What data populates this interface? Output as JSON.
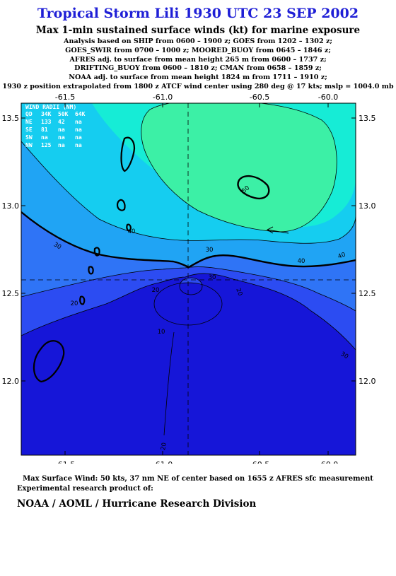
{
  "title": "Tropical Storm Lili 1930 UTC 23 SEP 2002",
  "subtitle": "Max 1-min sustained surface winds (kt) for marine exposure",
  "info_lines": [
    "Analysis based on  SHIP from 0600 – 1900 z;  GOES from 1202 – 1302 z;",
    "GOES_SWIR from 0700 – 1000 z;  MOORED_BUOY from 0645 – 1846 z;",
    "AFRES adj. to surface from mean height 265 m from 0600 – 1737 z;",
    "DRIFTING_BUOY from 0600 – 1810 z;  CMAN from 0658 – 1859 z;",
    "NOAA adj. to surface from mean height 1824 m from 1711 – 1910 z;",
    "1930 z position extrapolated from 1800 z ATCF wind center using 280 deg @ 17 kts; mslp = 1004.0 mb"
  ],
  "map": {
    "lon_ticks": [
      "-61.5",
      "-61.0",
      "-60.5",
      "-60.0"
    ],
    "lat_ticks": [
      "13.5",
      "13.0",
      "12.5",
      "12.0"
    ],
    "contour_labels": [
      "50",
      "40",
      "40",
      "40",
      "30",
      "30",
      "30",
      "30",
      "20",
      "20",
      "20",
      "10",
      "20"
    ],
    "wind_radii": {
      "header": "WIND RADII (NM)",
      "columns": [
        "QD",
        "34K",
        "50K",
        "64K"
      ],
      "rows": [
        [
          "NE",
          "133",
          "42",
          "na"
        ],
        [
          "SE",
          "81",
          "na",
          "na"
        ],
        [
          "SW",
          "na",
          "na",
          "na"
        ],
        [
          "NW",
          "125",
          "na",
          "na"
        ]
      ]
    },
    "colors": {
      "band_10": "#1616d8",
      "band_20": "#2c4cf2",
      "band_25": "#2f74f6",
      "band_30": "#20a4f4",
      "band_35": "#15cdf0",
      "band_40": "#16ecd6",
      "band_45": "#3cf0a6"
    }
  },
  "footer": {
    "max_wind": "Max Surface Wind: 50 kts, 37 nm NE of center based on 1655 z AFRES sfc measurement",
    "experimental": "Experimental research product of:",
    "org": "NOAA / AOML / Hurricane Research Division"
  }
}
